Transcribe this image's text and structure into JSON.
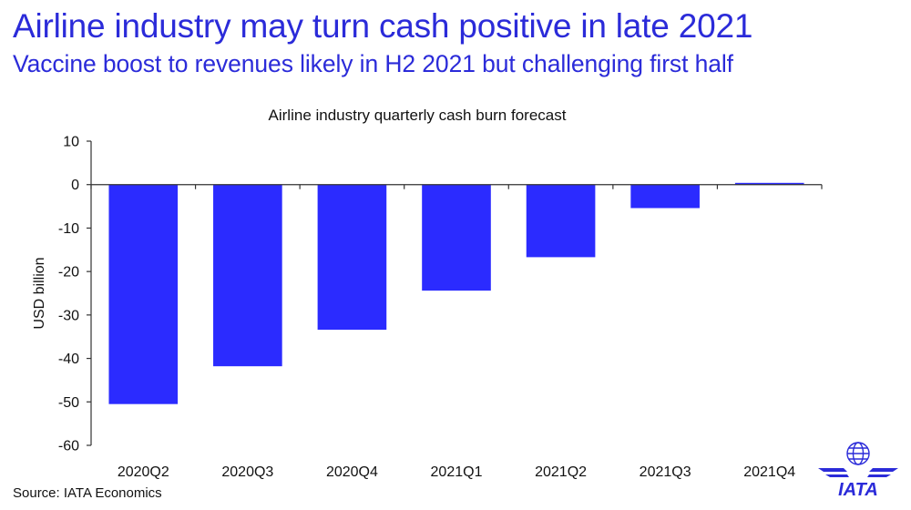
{
  "header": {
    "title": "Airline industry may turn cash positive in late 2021",
    "subtitle": "Vaccine boost to revenues likely in H2 2021 but challenging first half"
  },
  "footer": {
    "source": "Source: IATA Economics"
  },
  "logo": {
    "text": "IATA",
    "color": "#2b2bd9"
  },
  "chart_data": {
    "type": "bar",
    "title": "Airline industry quarterly cash burn forecast",
    "xlabel": "",
    "ylabel": "USD billion",
    "categories": [
      "2020Q2",
      "2020Q3",
      "2020Q4",
      "2021Q1",
      "2021Q2",
      "2021Q3",
      "2021Q4"
    ],
    "values": [
      -50.5,
      -41.8,
      -33.4,
      -24.4,
      -16.7,
      -5.4,
      0.4
    ],
    "ylim": [
      -60,
      10
    ],
    "yticks": [
      10,
      0,
      -10,
      -20,
      -30,
      -40,
      -50,
      -60
    ],
    "ytick_labels": [
      "10",
      "0",
      "-10",
      "-20",
      "-30",
      "-40",
      "-50",
      "-60"
    ],
    "bar_color": "#2b2bff",
    "grid": false,
    "legend": "none"
  }
}
